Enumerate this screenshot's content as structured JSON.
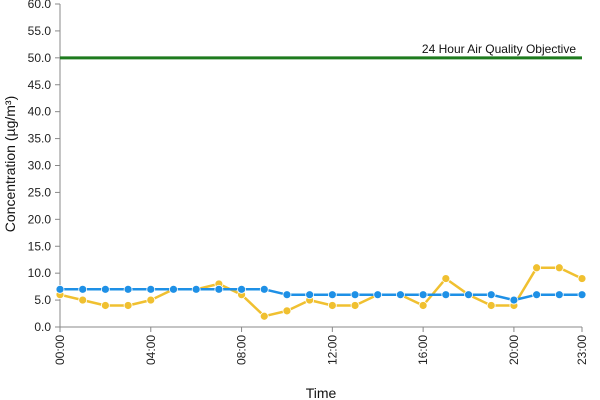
{
  "chart_data": {
    "type": "line",
    "xlabel": "Time",
    "ylabel": "Concentration (µg/m³)",
    "ylim": [
      0,
      60
    ],
    "y_ticks": [
      "0.0",
      "5.0",
      "10.0",
      "15.0",
      "20.0",
      "25.0",
      "30.0",
      "35.0",
      "40.0",
      "45.0",
      "50.0",
      "55.0",
      "60.0"
    ],
    "x": [
      "00:00",
      "01:00",
      "02:00",
      "03:00",
      "04:00",
      "05:00",
      "06:00",
      "07:00",
      "08:00",
      "09:00",
      "10:00",
      "11:00",
      "12:00",
      "13:00",
      "14:00",
      "15:00",
      "16:00",
      "17:00",
      "18:00",
      "19:00",
      "20:00",
      "21:00",
      "22:00",
      "23:00"
    ],
    "x_tick_labels": [
      "00:00",
      "04:00",
      "08:00",
      "12:00",
      "16:00",
      "20:00",
      "23:00"
    ],
    "grid": false,
    "series": [
      {
        "color": "#f0c030",
        "values": [
          6,
          5,
          4,
          4,
          5,
          7,
          7,
          8,
          6,
          2,
          3,
          5,
          4,
          4,
          6,
          6,
          4,
          9,
          6,
          4,
          4,
          11,
          11,
          9
        ]
      },
      {
        "color": "#1e90e6",
        "values": [
          7,
          7,
          7,
          7,
          7,
          7,
          7,
          7,
          7,
          7,
          6,
          6,
          6,
          6,
          6,
          6,
          6,
          6,
          6,
          6,
          5,
          6,
          6,
          6
        ]
      }
    ],
    "reference_line": {
      "value": 50,
      "label": "24 Hour Air Quality Objective",
      "color": "#1e7b1e"
    }
  }
}
